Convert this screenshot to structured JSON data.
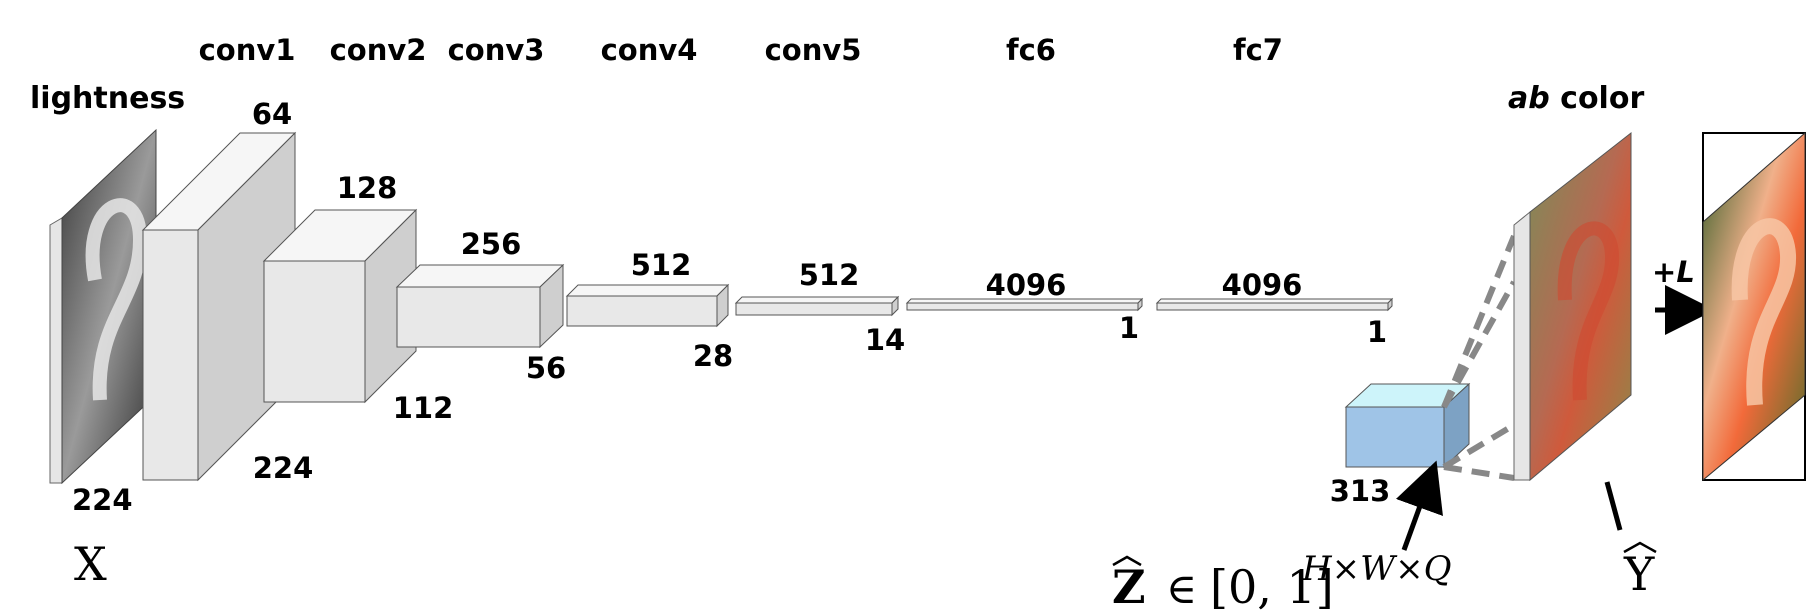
{
  "input": {
    "title": "lightness",
    "size": "224",
    "symbol": "X"
  },
  "layers": [
    {
      "name": "conv1",
      "channels": "64",
      "resolution": "224"
    },
    {
      "name": "conv2",
      "channels": "128",
      "resolution": "112"
    },
    {
      "name": "conv3",
      "channels": "256",
      "resolution": "56"
    },
    {
      "name": "conv4",
      "channels": "512",
      "resolution": "28"
    },
    {
      "name": "conv5",
      "channels": "512",
      "resolution": "14"
    },
    {
      "name": "fc6",
      "channels": "4096",
      "resolution": "1"
    },
    {
      "name": "fc7",
      "channels": "4096",
      "resolution": "1"
    }
  ],
  "distribution": {
    "channels": "313",
    "formula_lhs": "Z",
    "formula_rel": "∈",
    "formula_set": "[0, 1]",
    "formula_exp": "H×W×Q"
  },
  "output": {
    "title_italic": "ab",
    "title_rest": " color",
    "symbol": "Y",
    "plus_label_sign": "+",
    "plus_label_var": "L"
  },
  "colors": {
    "face_front": "#e8e8e8",
    "face_top": "#f6f6f6",
    "face_side": "#cfcfcf",
    "dist_front": "#9fc4e7",
    "dist_top": "#cdf4fa",
    "dist_side": "#7da2c4",
    "dashed": "#888888"
  }
}
